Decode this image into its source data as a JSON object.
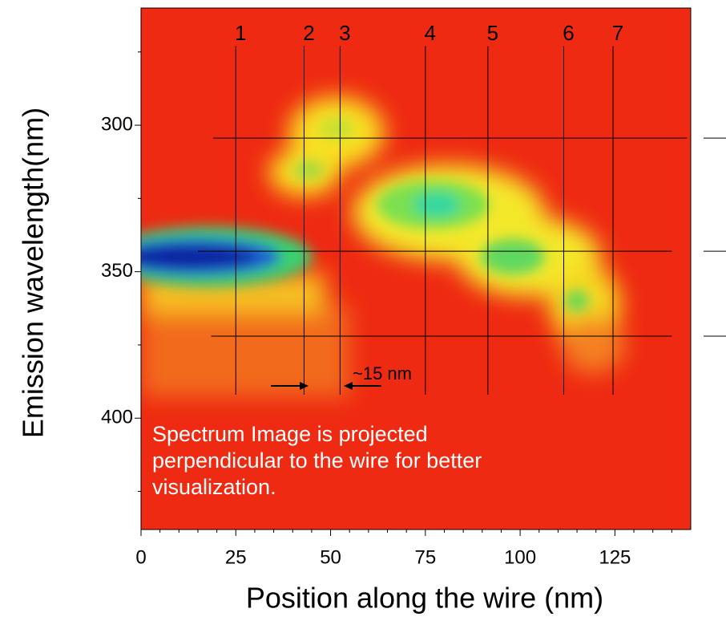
{
  "chart_data": {
    "type": "heatmap",
    "xlabel": "Position along the wire (nm)",
    "ylabel": "Emission wavelength(nm)",
    "xlim": [
      0,
      145
    ],
    "ylim": [
      438,
      260
    ],
    "xticks": [
      0,
      25,
      50,
      75,
      100,
      125
    ],
    "xminor": [
      5,
      10,
      15,
      20,
      30,
      35,
      40,
      45,
      55,
      60,
      65,
      70,
      80,
      85,
      90,
      95,
      105,
      110,
      115,
      120,
      130,
      135,
      140
    ],
    "yticks": [
      300,
      350,
      400
    ],
    "yminor": [
      275,
      325,
      375,
      425
    ],
    "vlines": [
      {
        "label": "1",
        "x": 25
      },
      {
        "label": "2",
        "x": 43
      },
      {
        "label": "3",
        "x": 52.5
      },
      {
        "label": "4",
        "x": 75
      },
      {
        "label": "5",
        "x": 91.5
      },
      {
        "label": "6",
        "x": 111.5
      },
      {
        "label": "7",
        "x": 124.5
      }
    ],
    "vline_span": [
      392,
      273
    ],
    "hlines": [
      {
        "y": 304.4,
        "from": 19,
        "to": 144
      },
      {
        "y": 343,
        "from": 15,
        "to": 140
      },
      {
        "y": 372,
        "from": 18.5,
        "to": 140
      }
    ],
    "annotations": [
      "~15 nm",
      "Spectrum Image is projected perpendicular to the wire for better visualization."
    ]
  }
}
